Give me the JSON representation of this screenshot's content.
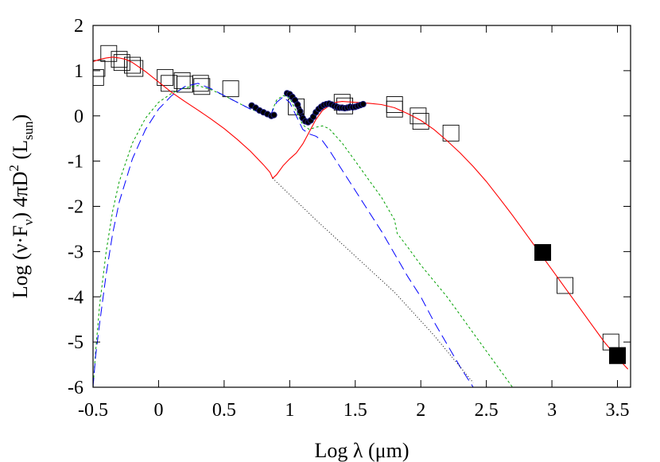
{
  "chart_data": {
    "type": "line",
    "title": "",
    "xlabel": "Log λ (μm)",
    "ylabel": "Log (ν·Fν) 4πD2 (Lsun)",
    "ylabel_parts": {
      "pre": "Log (ν·F",
      "sub_nu": "ν",
      "mid": ") 4πD",
      "sup_2": "2",
      "paren": " (L",
      "sub_sun": "sun",
      "close": ")"
    },
    "xlim": [
      -0.5,
      3.6
    ],
    "ylim": [
      -6,
      2
    ],
    "x_ticks": [
      {
        "value": -0.5,
        "label": "-0.5"
      },
      {
        "value": 0,
        "label": "0"
      },
      {
        "value": 0.5,
        "label": "0.5"
      },
      {
        "value": 1,
        "label": "1"
      },
      {
        "value": 1.5,
        "label": "1.5"
      },
      {
        "value": 2,
        "label": "2"
      },
      {
        "value": 2.5,
        "label": "2.5"
      },
      {
        "value": 3,
        "label": "3"
      },
      {
        "value": 3.5,
        "label": "3.5"
      }
    ],
    "y_ticks": [
      {
        "value": 2,
        "label": "2"
      },
      {
        "value": 1,
        "label": "1"
      },
      {
        "value": 0,
        "label": "0"
      },
      {
        "value": -1,
        "label": "-1"
      },
      {
        "value": -2,
        "label": "-2"
      },
      {
        "value": -3,
        "label": "-3"
      },
      {
        "value": -4,
        "label": "-4"
      },
      {
        "value": -5,
        "label": "-5"
      },
      {
        "value": -6,
        "label": "-6"
      }
    ],
    "grid": false,
    "legend": "none",
    "colors": {
      "total_model": "#ff0000",
      "green_model": "#00a000",
      "blue_model": "#0000ff",
      "stellar": "#000000"
    },
    "series": [
      {
        "key": "total_model",
        "style": "solid-red",
        "x": [
          -0.5,
          -0.45,
          -0.4,
          -0.35,
          -0.3,
          -0.25,
          -0.2,
          -0.1,
          0,
          0.1,
          0.2,
          0.3,
          0.4,
          0.5,
          0.6,
          0.7,
          0.8,
          0.85,
          0.87,
          0.9,
          0.95,
          1.0,
          1.05,
          1.1,
          1.15,
          1.2,
          1.25,
          1.3,
          1.35,
          1.4,
          1.5,
          1.6,
          1.7,
          1.8,
          1.9,
          2.0,
          2.1,
          2.2,
          2.3,
          2.4,
          2.5,
          2.6,
          2.7,
          2.8,
          2.9,
          3.0,
          3.1,
          3.2,
          3.3,
          3.4,
          3.5,
          3.58
        ],
        "y": [
          1.2,
          1.25,
          1.28,
          1.3,
          1.28,
          1.25,
          1.18,
          0.98,
          0.75,
          0.52,
          0.32,
          0.13,
          -0.07,
          -0.28,
          -0.52,
          -0.78,
          -1.08,
          -1.25,
          -1.38,
          -1.3,
          -1.1,
          -0.95,
          -0.82,
          -0.62,
          -0.35,
          -0.08,
          0.12,
          0.22,
          0.3,
          0.32,
          0.3,
          0.28,
          0.25,
          0.18,
          0.05,
          -0.1,
          -0.3,
          -0.55,
          -0.82,
          -1.12,
          -1.45,
          -1.82,
          -2.2,
          -2.6,
          -3.0,
          -3.4,
          -3.8,
          -4.2,
          -4.6,
          -5.0,
          -5.35,
          -5.6
        ]
      },
      {
        "key": "green_model",
        "style": "short-dash-green",
        "x": [
          -0.5,
          -0.48,
          -0.45,
          -0.4,
          -0.35,
          -0.3,
          -0.2,
          -0.1,
          0,
          0.1,
          0.2,
          0.3,
          0.4,
          0.5,
          0.6,
          0.7,
          0.8,
          0.85,
          0.9,
          0.95,
          1.0,
          1.05,
          1.1,
          1.15,
          1.2,
          1.25,
          1.3,
          1.4,
          1.5,
          1.6,
          1.7,
          1.8,
          1.82,
          1.9,
          2.0,
          2.1,
          2.2,
          2.3,
          2.4,
          2.5,
          2.6,
          2.7
        ],
        "y": [
          -6,
          -5.2,
          -4.2,
          -3.0,
          -2.1,
          -1.45,
          -0.6,
          -0.05,
          0.3,
          0.5,
          0.62,
          0.67,
          0.58,
          0.45,
          0.3,
          0.15,
          0.05,
          0.0,
          0.35,
          0.45,
          0.4,
          0.1,
          -0.2,
          -0.3,
          -0.25,
          -0.22,
          -0.28,
          -0.6,
          -1.0,
          -1.4,
          -1.8,
          -2.3,
          -2.6,
          -2.9,
          -3.3,
          -3.65,
          -4.0,
          -4.4,
          -4.8,
          -5.2,
          -5.6,
          -6.0
        ]
      },
      {
        "key": "blue_model",
        "style": "long-dash-blue",
        "x": [
          -0.5,
          -0.48,
          -0.45,
          -0.4,
          -0.35,
          -0.3,
          -0.2,
          -0.1,
          0,
          0.1,
          0.2,
          0.3,
          0.4,
          0.5,
          0.6,
          0.7,
          0.8,
          0.85,
          0.9,
          0.95,
          1.0,
          1.05,
          1.1,
          1.15,
          1.2,
          1.25,
          1.3,
          1.4,
          1.5,
          1.6,
          1.7,
          1.8,
          1.9,
          2.0,
          2.1,
          2.2,
          2.3,
          2.4
        ],
        "y": [
          -6,
          -5.3,
          -4.6,
          -3.5,
          -2.6,
          -1.9,
          -0.95,
          -0.3,
          0.15,
          0.45,
          0.65,
          0.72,
          0.6,
          0.45,
          0.3,
          0.15,
          0.05,
          0.0,
          0.3,
          0.42,
          0.3,
          0.0,
          -0.3,
          -0.4,
          -0.45,
          -0.55,
          -0.75,
          -1.2,
          -1.65,
          -2.1,
          -2.55,
          -3.05,
          -3.55,
          -4.0,
          -4.55,
          -5.05,
          -5.55,
          -6.0
        ]
      },
      {
        "key": "stellar",
        "style": "dotted-black",
        "x": [
          0.87,
          1.2,
          1.5,
          1.8,
          2.1,
          2.4
        ],
        "y": [
          -1.38,
          -2.3,
          -3.1,
          -3.9,
          -4.85,
          -5.9
        ]
      },
      {
        "key": "spectrum_a",
        "style": "thick-dots",
        "x": [
          0.71,
          0.74,
          0.77,
          0.8,
          0.83,
          0.86,
          0.88
        ],
        "y": [
          0.23,
          0.18,
          0.12,
          0.08,
          0.04,
          0.0,
          0.02
        ]
      },
      {
        "key": "spectrum_b",
        "style": "thick-dots",
        "x": [
          0.98,
          1.0,
          1.02,
          1.04,
          1.06,
          1.08,
          1.1,
          1.12,
          1.14,
          1.16,
          1.18,
          1.2,
          1.22,
          1.24,
          1.26,
          1.28,
          1.3,
          1.32,
          1.34,
          1.36,
          1.38,
          1.4,
          1.42,
          1.44,
          1.46,
          1.48,
          1.5,
          1.52,
          1.54,
          1.56
        ],
        "y": [
          0.5,
          0.48,
          0.42,
          0.35,
          0.25,
          0.1,
          -0.05,
          -0.12,
          -0.14,
          -0.1,
          -0.02,
          0.08,
          0.15,
          0.2,
          0.24,
          0.26,
          0.27,
          0.25,
          0.22,
          0.2,
          0.18,
          0.18,
          0.17,
          0.18,
          0.2,
          0.19,
          0.2,
          0.22,
          0.24,
          0.26
        ]
      }
    ],
    "photometry_open": [
      {
        "x": -0.48,
        "y": 0.85
      },
      {
        "x": -0.47,
        "y": 1.05
      },
      {
        "x": -0.38,
        "y": 1.38
      },
      {
        "x": -0.3,
        "y": 1.25
      },
      {
        "x": -0.28,
        "y": 1.18
      },
      {
        "x": -0.2,
        "y": 1.12
      },
      {
        "x": -0.18,
        "y": 1.05
      },
      {
        "x": 0.05,
        "y": 0.85
      },
      {
        "x": 0.08,
        "y": 0.72
      },
      {
        "x": 0.18,
        "y": 0.78
      },
      {
        "x": 0.2,
        "y": 0.7
      },
      {
        "x": 0.32,
        "y": 0.72
      },
      {
        "x": 0.33,
        "y": 0.65
      },
      {
        "x": 0.55,
        "y": 0.6
      },
      {
        "x": 1.05,
        "y": 0.2
      },
      {
        "x": 1.4,
        "y": 0.3
      },
      {
        "x": 1.42,
        "y": 0.22
      },
      {
        "x": 1.8,
        "y": 0.25
      },
      {
        "x": 1.8,
        "y": 0.15
      },
      {
        "x": 1.98,
        "y": 0.0
      },
      {
        "x": 2.0,
        "y": -0.12
      },
      {
        "x": 2.23,
        "y": -0.38
      },
      {
        "x": 3.1,
        "y": -3.75
      },
      {
        "x": 3.45,
        "y": -5.0
      },
      {
        "x": 3.5,
        "y": -5.3
      }
    ],
    "photometry_filled": [
      {
        "x": 2.93,
        "y": -3.02
      },
      {
        "x": 3.5,
        "y": -5.3
      }
    ]
  }
}
